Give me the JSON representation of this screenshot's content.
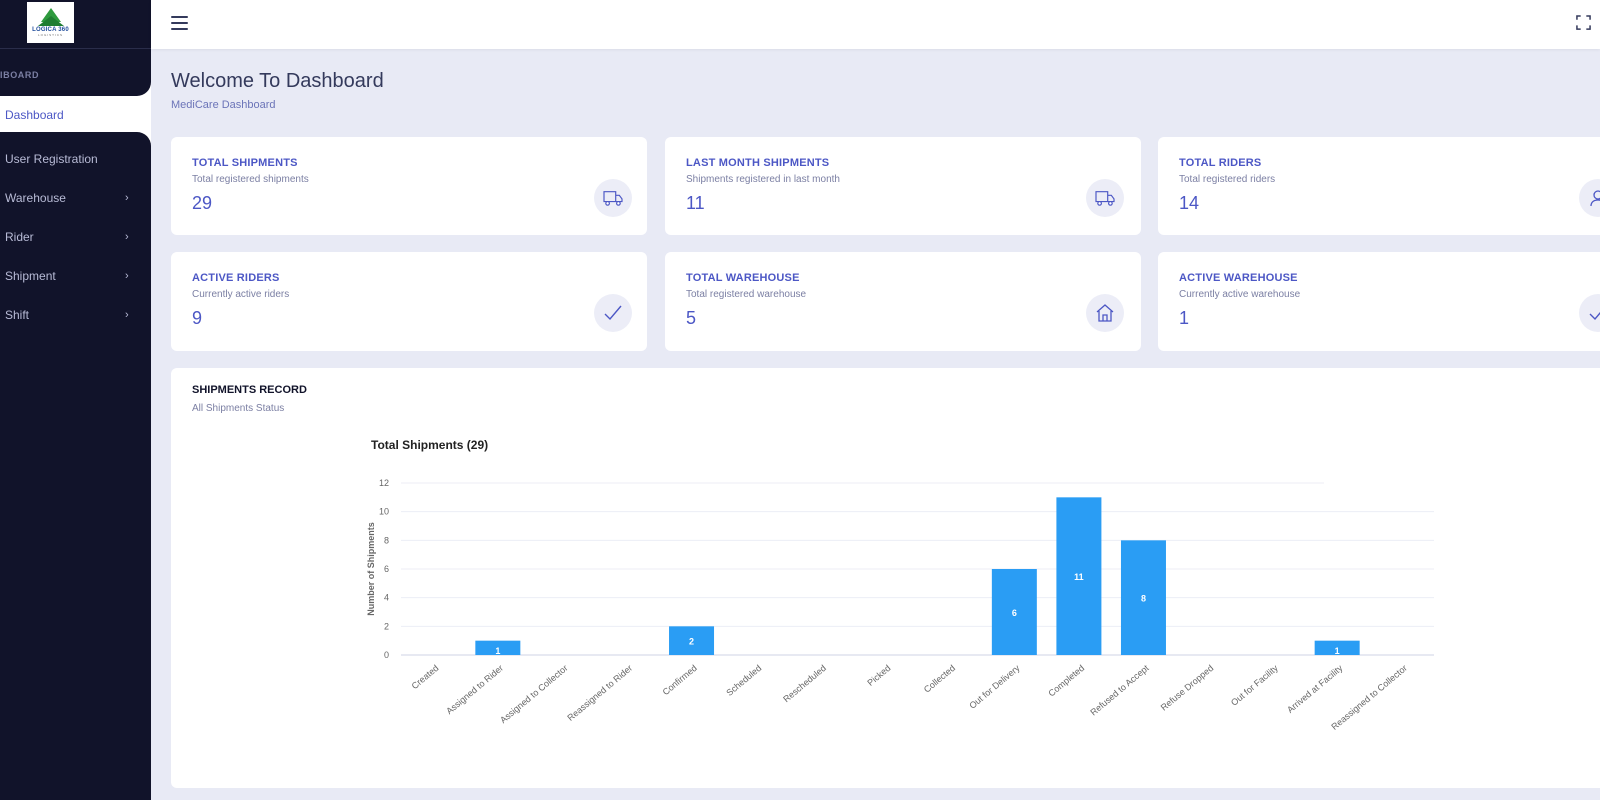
{
  "sidebar": {
    "logo_text": "LOGICA 360",
    "logo_sub": "LOGISTICS",
    "section_label": "IBOARD",
    "active_item": "Dashboard",
    "items": [
      {
        "label": "User Registration",
        "has_chevron": false
      },
      {
        "label": "Warehouse",
        "has_chevron": true
      },
      {
        "label": "Rider",
        "has_chevron": true
      },
      {
        "label": "Shipment",
        "has_chevron": true
      },
      {
        "label": "Shift",
        "has_chevron": true
      }
    ]
  },
  "header": {
    "menu_icon": "hamburger-icon",
    "fullscreen_icon": "fullscreen-icon"
  },
  "page": {
    "title": "Welcome To Dashboard",
    "subtitle": "MediCare Dashboard"
  },
  "cards": [
    {
      "title": "TOTAL SHIPMENTS",
      "subtitle": "Total registered shipments",
      "value": "29",
      "icon": "truck-icon"
    },
    {
      "title": "LAST MONTH SHIPMENTS",
      "subtitle": "Shipments registered in last month",
      "value": "11",
      "icon": "truck-icon"
    },
    {
      "title": "TOTAL RIDERS",
      "subtitle": "Total registered riders",
      "value": "14",
      "icon": "user-icon"
    },
    {
      "title": "ACTIVE RIDERS",
      "subtitle": "Currently active riders",
      "value": "9",
      "icon": "check-icon"
    },
    {
      "title": "TOTAL WAREHOUSE",
      "subtitle": "Total registered warehouse",
      "value": "5",
      "icon": "house-icon"
    },
    {
      "title": "ACTIVE WAREHOUSE",
      "subtitle": "Currently active warehouse",
      "value": "1",
      "icon": "check-icon"
    }
  ],
  "shipments_record": {
    "title": "SHIPMENTS RECORD",
    "subtitle": "All Shipments Status"
  },
  "chart_data": {
    "type": "bar",
    "title": "Total Shipments (29)",
    "xlabel": "",
    "ylabel": "Number of Shipments",
    "ylim": [
      0,
      12
    ],
    "yticks": [
      0,
      2,
      4,
      6,
      8,
      10,
      12
    ],
    "grid": true,
    "bar_color": "#2a9df4",
    "categories": [
      "Created",
      "Assigned to Rider",
      "Assigned to Collector",
      "Reassigned to Rider",
      "Confirmed",
      "Scheduled",
      "Rescheduled",
      "Picked",
      "Collected",
      "Out for Delivery",
      "Completed",
      "Refused to Accept",
      "Refuse Dropped",
      "Out for Facility",
      "Arrived at Facility",
      "Reassigned to Collector"
    ],
    "values": [
      0,
      1,
      0,
      0,
      2,
      0,
      0,
      0,
      0,
      6,
      11,
      8,
      0,
      0,
      1,
      0
    ]
  },
  "colors": {
    "accent": "#4c57c5",
    "sidebar_bg": "#11132a",
    "page_bg": "#e8eaf5"
  }
}
